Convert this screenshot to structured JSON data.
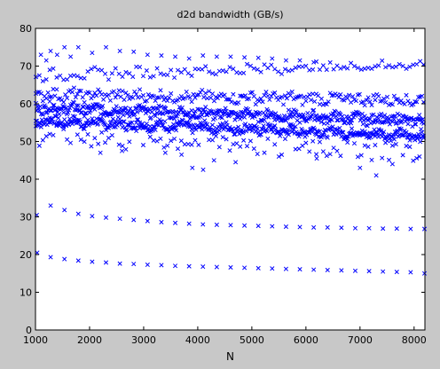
{
  "chart_data": {
    "type": "scatter",
    "title": "d2d bandwidth (GB/s)",
    "xlabel": "N",
    "ylabel": "",
    "xlim": [
      1000,
      8200
    ],
    "ylim": [
      0,
      80
    ],
    "xticks": [
      1000,
      2000,
      3000,
      4000,
      5000,
      6000,
      7000,
      8000
    ],
    "yticks": [
      0,
      10,
      20,
      30,
      40,
      50,
      60,
      70,
      80
    ],
    "grid": false,
    "legend": "none",
    "marker": "x",
    "color": "#0000ff",
    "series": [
      {
        "values": [
          [
            1032,
            20.5
          ],
          [
            1280,
            19.3
          ],
          [
            1536,
            18.8
          ],
          [
            1792,
            18.4
          ],
          [
            2048,
            18.1
          ],
          [
            2304,
            17.9
          ],
          [
            2560,
            17.6
          ],
          [
            2816,
            17.5
          ],
          [
            3072,
            17.3
          ],
          [
            3328,
            17.2
          ],
          [
            3584,
            17.0
          ],
          [
            3840,
            16.9
          ],
          [
            4096,
            16.8
          ],
          [
            4352,
            16.7
          ],
          [
            4608,
            16.6
          ],
          [
            4864,
            16.5
          ],
          [
            5120,
            16.4
          ],
          [
            5376,
            16.3
          ],
          [
            5632,
            16.2
          ],
          [
            5888,
            16.1
          ],
          [
            6144,
            16.0
          ],
          [
            6400,
            15.9
          ],
          [
            6656,
            15.8
          ],
          [
            6912,
            15.7
          ],
          [
            7168,
            15.6
          ],
          [
            7424,
            15.5
          ],
          [
            7680,
            15.4
          ],
          [
            7936,
            15.3
          ],
          [
            8192,
            15.0
          ]
        ]
      },
      {
        "values": [
          [
            1024,
            30.5
          ],
          [
            1280,
            33.0
          ],
          [
            1536,
            31.8
          ],
          [
            1792,
            30.8
          ],
          [
            2048,
            30.2
          ],
          [
            2304,
            29.8
          ],
          [
            2560,
            29.5
          ],
          [
            2816,
            29.2
          ],
          [
            3072,
            28.9
          ],
          [
            3328,
            28.6
          ],
          [
            3584,
            28.4
          ],
          [
            3840,
            28.2
          ],
          [
            4096,
            28.0
          ],
          [
            4352,
            27.9
          ],
          [
            4608,
            27.8
          ],
          [
            4864,
            27.7
          ],
          [
            5120,
            27.6
          ],
          [
            5376,
            27.5
          ],
          [
            5632,
            27.4
          ],
          [
            5888,
            27.3
          ],
          [
            6144,
            27.2
          ],
          [
            6400,
            27.2
          ],
          [
            6656,
            27.1
          ],
          [
            6912,
            27.0
          ],
          [
            7168,
            27.0
          ],
          [
            7424,
            26.9
          ],
          [
            7680,
            26.9
          ],
          [
            7936,
            26.8
          ],
          [
            8192,
            26.8
          ]
        ]
      },
      {
        "bands": [
          {
            "x_start": 1008,
            "x_end": 8190,
            "step": 16,
            "y_start": 55.5,
            "y_end": 51.5,
            "jitter": 1.2
          },
          {
            "x_start": 1008,
            "x_end": 8190,
            "step": 16,
            "y_start": 59.0,
            "y_end": 55.5,
            "jitter": 1.3
          },
          {
            "x_start": 1008,
            "x_end": 8190,
            "step": 32,
            "y_start": 62.5,
            "y_end": 61.0,
            "jitter": 1.4
          },
          {
            "x_start": 1008,
            "x_end": 8190,
            "step": 64,
            "y_start": 67.5,
            "y_end": 70.5,
            "jitter": 1.2
          },
          {
            "x_start": 1008,
            "x_end": 8190,
            "step": 64,
            "y_start": 52.0,
            "y_end": 48.0,
            "jitter": 3.5
          }
        ],
        "outliers": [
          [
            1280,
            74.0
          ],
          [
            1536,
            75.0
          ],
          [
            1792,
            75.0
          ],
          [
            2048,
            73.5
          ],
          [
            2304,
            75.0
          ],
          [
            2560,
            74.0
          ],
          [
            2816,
            73.8
          ],
          [
            3072,
            73.0
          ],
          [
            3328,
            72.8
          ],
          [
            3584,
            72.5
          ],
          [
            3840,
            72.0
          ],
          [
            4096,
            72.8
          ],
          [
            4352,
            72.5
          ],
          [
            4608,
            72.5
          ],
          [
            4864,
            72.3
          ],
          [
            5120,
            72.2
          ],
          [
            5376,
            72.0
          ],
          [
            5632,
            71.5
          ],
          [
            5888,
            71.5
          ],
          [
            6144,
            71.0
          ],
          [
            1100,
            73.0
          ],
          [
            1200,
            71.5
          ],
          [
            1400,
            73.0
          ],
          [
            1650,
            72.5
          ],
          [
            3900,
            43.0
          ],
          [
            4100,
            42.5
          ],
          [
            4300,
            45.0
          ],
          [
            4700,
            44.5
          ],
          [
            5500,
            46.0
          ],
          [
            6200,
            45.5
          ],
          [
            7000,
            43.0
          ],
          [
            7300,
            41.0
          ],
          [
            7600,
            44.0
          ],
          [
            8100,
            46.0
          ],
          [
            2200,
            47.0
          ],
          [
            2600,
            47.5
          ],
          [
            3400,
            47.0
          ],
          [
            3700,
            46.5
          ]
        ]
      }
    ]
  }
}
